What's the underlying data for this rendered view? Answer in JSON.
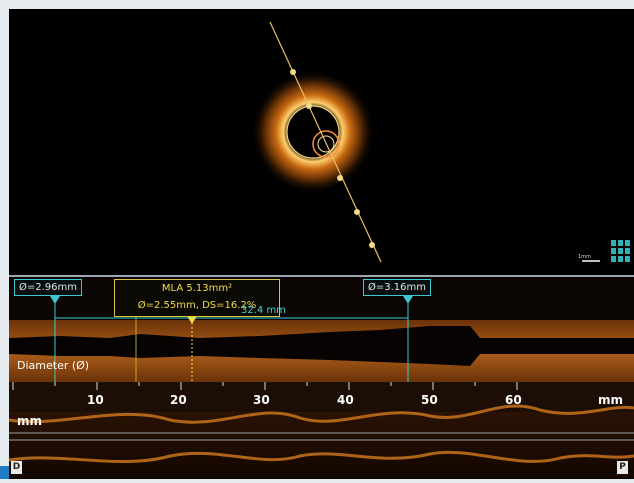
{
  "measurements": {
    "proximal_diameter": "Ø=2.96mm",
    "distal_diameter": "Ø=3.16mm",
    "mla_line1": "MLA 5.13mm²",
    "mla_line2": "Ø=2.55mm, DS=16.2%",
    "length": "32.4 mm"
  },
  "diameter_track_label": "Diameter (Ø)",
  "axis": {
    "ticks": [
      "10",
      "20",
      "30",
      "40",
      "50",
      "60"
    ],
    "unit_right": "mm",
    "unit_left": "mm"
  },
  "scale_bar_label": "1mm",
  "end_markers": {
    "distal": "D",
    "proximal": "P"
  },
  "colors": {
    "measure_cyan": "#3cc8ce",
    "mla_yellow": "#f2dc48",
    "tissue_orange": "#c8731c",
    "background": "#000000"
  },
  "icons": [
    "grid-view-icon",
    "scale-bar-icon"
  ]
}
